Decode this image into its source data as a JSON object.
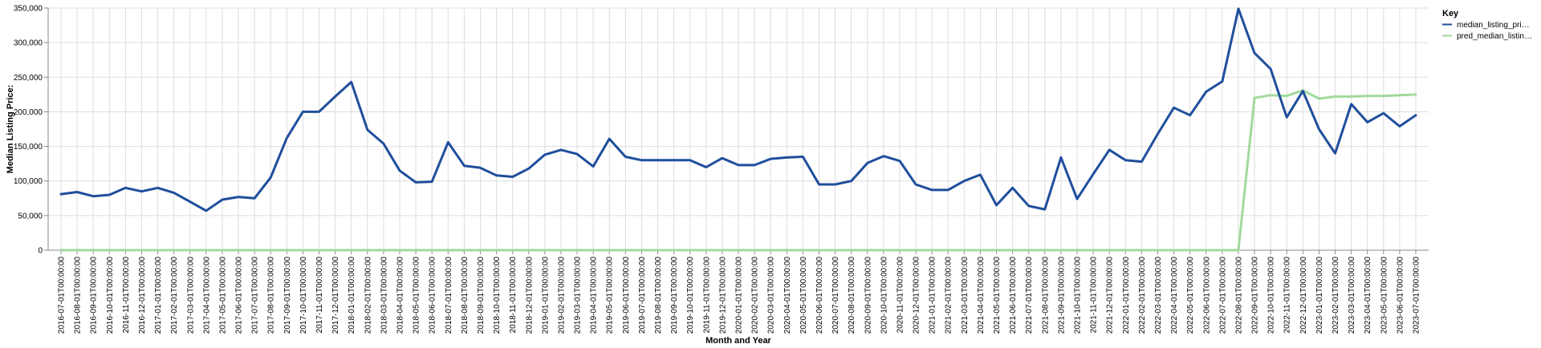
{
  "chart_data": {
    "type": "line",
    "title": "",
    "xlabel": "Month and Year",
    "ylabel": "Median Listing Price:",
    "ylim": [
      0,
      350000
    ],
    "y_ticks": [
      "0",
      "50,000",
      "100,000",
      "150,000",
      "200,000",
      "250,000",
      "300,000",
      "350,000"
    ],
    "y_tick_values": [
      0,
      50000,
      100000,
      150000,
      200000,
      250000,
      300000,
      350000
    ],
    "grid": true,
    "legend": {
      "title": "Key",
      "placement": "top-right",
      "entries": [
        "median_listing_pri…",
        "pred_median_listin…"
      ]
    },
    "x": [
      "2016-07-01T00:00:00",
      "2016-08-01T00:00:00",
      "2016-09-01T00:00:00",
      "2016-10-01T00:00:00",
      "2016-11-01T00:00:00",
      "2016-12-01T00:00:00",
      "2017-01-01T00:00:00",
      "2017-02-01T00:00:00",
      "2017-03-01T00:00:00",
      "2017-04-01T00:00:00",
      "2017-05-01T00:00:00",
      "2017-06-01T00:00:00",
      "2017-07-01T00:00:00",
      "2017-08-01T00:00:00",
      "2017-09-01T00:00:00",
      "2017-10-01T00:00:00",
      "2017-11-01T00:00:00",
      "2017-12-01T00:00:00",
      "2018-01-01T00:00:00",
      "2018-02-01T00:00:00",
      "2018-03-01T00:00:00",
      "2018-04-01T00:00:00",
      "2018-05-01T00:00:00",
      "2018-06-01T00:00:00",
      "2018-07-01T00:00:00",
      "2018-08-01T00:00:00",
      "2018-09-01T00:00:00",
      "2018-10-01T00:00:00",
      "2018-11-01T00:00:00",
      "2018-12-01T00:00:00",
      "2019-01-01T00:00:00",
      "2019-02-01T00:00:00",
      "2019-03-01T00:00:00",
      "2019-04-01T00:00:00",
      "2019-05-01T00:00:00",
      "2019-06-01T00:00:00",
      "2019-07-01T00:00:00",
      "2019-08-01T00:00:00",
      "2019-09-01T00:00:00",
      "2019-10-01T00:00:00",
      "2019-11-01T00:00:00",
      "2019-12-01T00:00:00",
      "2020-01-01T00:00:00",
      "2020-02-01T00:00:00",
      "2020-03-01T00:00:00",
      "2020-04-01T00:00:00",
      "2020-05-01T00:00:00",
      "2020-06-01T00:00:00",
      "2020-07-01T00:00:00",
      "2020-08-01T00:00:00",
      "2020-09-01T00:00:00",
      "2020-10-01T00:00:00",
      "2020-11-01T00:00:00",
      "2020-12-01T00:00:00",
      "2021-01-01T00:00:00",
      "2021-02-01T00:00:00",
      "2021-03-01T00:00:00",
      "2021-04-01T00:00:00",
      "2021-05-01T00:00:00",
      "2021-06-01T00:00:00",
      "2021-07-01T00:00:00",
      "2021-08-01T00:00:00",
      "2021-09-01T00:00:00",
      "2021-10-01T00:00:00",
      "2021-11-01T00:00:00",
      "2021-12-01T00:00:00",
      "2022-01-01T00:00:00",
      "2022-02-01T00:00:00",
      "2022-03-01T00:00:00",
      "2022-04-01T00:00:00",
      "2022-05-01T00:00:00",
      "2022-06-01T00:00:00",
      "2022-07-01T00:00:00",
      "2022-08-01T00:00:00",
      "2022-09-01T00:00:00",
      "2022-10-01T00:00:00",
      "2022-11-01T00:00:00",
      "2022-12-01T00:00:00",
      "2023-01-01T00:00:00",
      "2023-02-01T00:00:00",
      "2023-03-01T00:00:00",
      "2023-04-01T00:00:00",
      "2023-05-01T00:00:00",
      "2023-06-01T00:00:00",
      "2023-07-01T00:00:00"
    ],
    "series": [
      {
        "name": "median_listing_pri…",
        "color": "#1f4e9c",
        "values": [
          81000,
          84000,
          78000,
          80000,
          90000,
          85000,
          90000,
          83000,
          70000,
          57000,
          73000,
          77000,
          75000,
          105000,
          162000,
          200000,
          200000,
          222000,
          243000,
          174000,
          154000,
          115000,
          98000,
          99000,
          156000,
          122000,
          119000,
          108000,
          106000,
          118000,
          138000,
          145000,
          139000,
          121000,
          161000,
          135000,
          130000,
          130000,
          130000,
          130000,
          120000,
          133000,
          123000,
          123000,
          132000,
          134000,
          135000,
          95000,
          95000,
          100000,
          126000,
          136000,
          129000,
          95000,
          87000,
          87000,
          100000,
          109000,
          65000,
          90000,
          64000,
          59000,
          134000,
          74000,
          110000,
          145000,
          130000,
          128000,
          168000,
          206000,
          195000,
          229000,
          244000,
          349000,
          285000,
          262000,
          192000,
          230000,
          175000,
          140000,
          211000,
          185000,
          198000,
          179000,
          195000
        ]
      },
      {
        "name": "pred_median_listin…",
        "color": "#a1d99b",
        "values": [
          0,
          0,
          0,
          0,
          0,
          0,
          0,
          0,
          0,
          0,
          0,
          0,
          0,
          0,
          0,
          0,
          0,
          0,
          0,
          0,
          0,
          0,
          0,
          0,
          0,
          0,
          0,
          0,
          0,
          0,
          0,
          0,
          0,
          0,
          0,
          0,
          0,
          0,
          0,
          0,
          0,
          0,
          0,
          0,
          0,
          0,
          0,
          0,
          0,
          0,
          0,
          0,
          0,
          0,
          0,
          0,
          0,
          0,
          0,
          0,
          0,
          0,
          0,
          0,
          0,
          0,
          0,
          0,
          0,
          0,
          0,
          0,
          0,
          0,
          220000,
          224000,
          223000,
          231000,
          219000,
          222000,
          222000,
          223000,
          223000,
          224000,
          225000
        ]
      }
    ]
  }
}
